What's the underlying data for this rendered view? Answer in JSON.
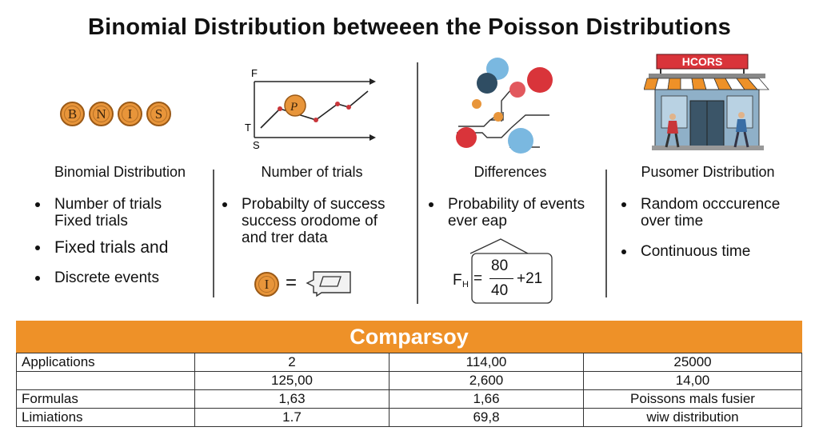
{
  "title": "Binomial Distribution betweeen the Poisson Distributions",
  "columns": [
    {
      "heading": "Binomial Distribution",
      "coins": [
        "B",
        "N",
        "I",
        "S"
      ],
      "bullets": [
        "Number of trials\nFixed trials",
        "Fixed trials and",
        "Discrete events"
      ]
    },
    {
      "heading": "Number of trials",
      "graph_labels": {
        "top": "F",
        "middle": "T",
        "bottom": "S",
        "marker": "P"
      },
      "bullets": [
        "Probabilty of success\nsuccess orodome of\nand trer data"
      ],
      "equation_coin": "I",
      "equals": "="
    },
    {
      "heading": "Differences",
      "bullets": [
        "Probability of events\never eap"
      ],
      "formula": {
        "lhs": "F",
        "lhs_sub": "H",
        "equals": "=",
        "numerator": "80",
        "denominator": "40",
        "tail": "+21"
      }
    },
    {
      "heading": "Pusomer Distribution",
      "store_sign": "HCORS",
      "bullets": [
        "Random occcurence\nover time",
        "Continuous time"
      ]
    }
  ],
  "comparison": {
    "heading": "Comparsoy",
    "rows": [
      [
        "Applications",
        "2",
        "114,00",
        "25000"
      ],
      [
        "",
        "125,00",
        "2,600",
        "14,00"
      ],
      [
        "Formulas",
        "1,63",
        "1,66",
        "Poissons mals fusier"
      ],
      [
        "Limiations",
        "1.7",
        "69,8",
        "wiw distribution"
      ]
    ]
  },
  "colors": {
    "accent": "#ee9128",
    "coin": "#e8953a",
    "red": "#d9343a",
    "blue": "#7ab8e0",
    "navy": "#2f4d63",
    "line_red": "#c9363a"
  }
}
